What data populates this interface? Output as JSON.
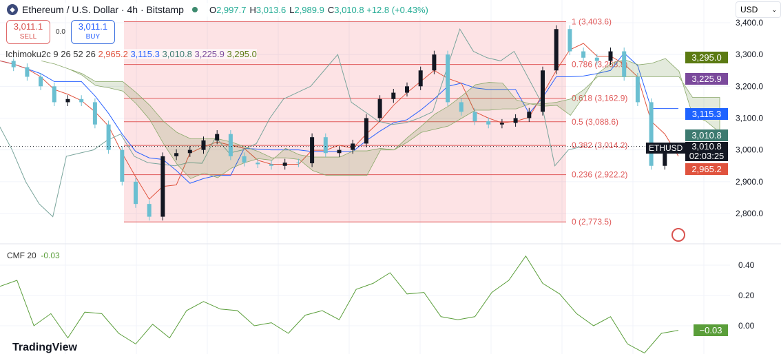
{
  "header": {
    "title": "Ethereum / U.S. Dollar · 4h · Bitstamp",
    "open_label": "O",
    "open": "2,997.7",
    "high_label": "H",
    "high": "3,013.6",
    "low_label": "L",
    "low": "2,989.9",
    "close_label": "C",
    "close": "3,010.8",
    "change": "+12.8 (+0.43%)",
    "logo_icon": "ethereum-icon"
  },
  "trade": {
    "sell_price": "3,011.1",
    "sell_label": "SELL",
    "spread": "0.0",
    "buy_price": "3,011.1",
    "buy_label": "BUY"
  },
  "ichimoku": {
    "name": "Ichimoku2c",
    "params": "9 26 52 26",
    "values": [
      "2,965.2",
      "3,115.3",
      "3,010.8",
      "3,225.9",
      "3,295.0"
    ],
    "colors": [
      "#e0533e",
      "#2962ff",
      "#3d7a70",
      "#7b4a9c",
      "#5b7a12"
    ]
  },
  "currency": "USD",
  "price_tags": [
    {
      "value": "3,295.0",
      "color": "#5b7a12"
    },
    {
      "value": "3,225.9",
      "color": "#7b4a9c"
    },
    {
      "value": "3,115.3",
      "color": "#1e63ff"
    },
    {
      "value": "3,010.8",
      "color": "#3d7a70"
    },
    {
      "value": "2,965.2",
      "color": "#e0533e"
    }
  ],
  "last_price": {
    "symbol": "ETHUSD",
    "value": "3,010.8",
    "countdown": "02:03:25"
  },
  "cmf": {
    "label": "CMF 20",
    "value": "-0.03",
    "tag": "−0.03"
  },
  "brand": "TradingView",
  "chart_data": [
    {
      "type": "candlestick",
      "ylim": [
        2740,
        3470
      ],
      "yticks": [
        "3,400.0",
        "3,300.0",
        "3,200.0",
        "3,100.0",
        "3,000.0",
        "2,900.0",
        "2,800.0"
      ],
      "ytick_values": [
        3400,
        3300,
        3200,
        3100,
        3000,
        2900,
        2800
      ],
      "closes": [
        3280,
        3260,
        3230,
        3200,
        3150,
        3160,
        3150,
        3080,
        3000,
        2900,
        2830,
        2790,
        2980,
        2990,
        3000,
        3030,
        3050,
        2980,
        2960,
        2955,
        2950,
        2960,
        2958,
        3040,
        2990,
        3000,
        3020,
        3100,
        3160,
        3180,
        3200,
        3250,
        3300,
        3150,
        3120,
        3090,
        3080,
        3085,
        3100,
        3120,
        3250,
        3380,
        3310,
        3290,
        3280,
        3310,
        3230,
        3150,
        2950,
        3000,
        3010.8
      ],
      "fib_levels": [
        {
          "ratio": "1",
          "price": 3403.6,
          "label": "1 (3,403.6)"
        },
        {
          "ratio": "0.786",
          "price": 3268.8,
          "label": "0.786 (3,268.8)"
        },
        {
          "ratio": "0.618",
          "price": 3162.9,
          "label": "0.618 (3,162.9)"
        },
        {
          "ratio": "0.5",
          "price": 3088.6,
          "label": "0.5 (3,088.6)"
        },
        {
          "ratio": "0.382",
          "price": 3014.2,
          "label": "0.382 (3,014.2)"
        },
        {
          "ratio": "0.236",
          "price": 2922.2,
          "label": "0.236 (2,922.2)"
        },
        {
          "ratio": "0",
          "price": 2773.5,
          "label": "0 (2,773.5)"
        }
      ],
      "fib_color": "#e05a5a"
    },
    {
      "type": "line",
      "title": "CMF 20",
      "ylim": [
        -0.2,
        0.5
      ],
      "yticks": [
        "0.40",
        "0.20",
        "0.00"
      ],
      "ytick_values": [
        0.4,
        0.2,
        0
      ],
      "values": [
        0.26,
        0.3,
        0.0,
        0.08,
        -0.08,
        0.09,
        0.08,
        -0.05,
        -0.12,
        0.01,
        -0.08,
        0.1,
        0.16,
        0.11,
        0.1,
        0.0,
        0.02,
        -0.05,
        0.07,
        0.1,
        0.04,
        0.24,
        0.28,
        0.35,
        0.21,
        0.22,
        0.06,
        0.04,
        0.06,
        0.22,
        0.3,
        0.46,
        0.28,
        0.21,
        0.08,
        0.0,
        0.06,
        -0.12,
        -0.18,
        -0.05,
        -0.03
      ],
      "color": "#5a9e3a"
    }
  ]
}
